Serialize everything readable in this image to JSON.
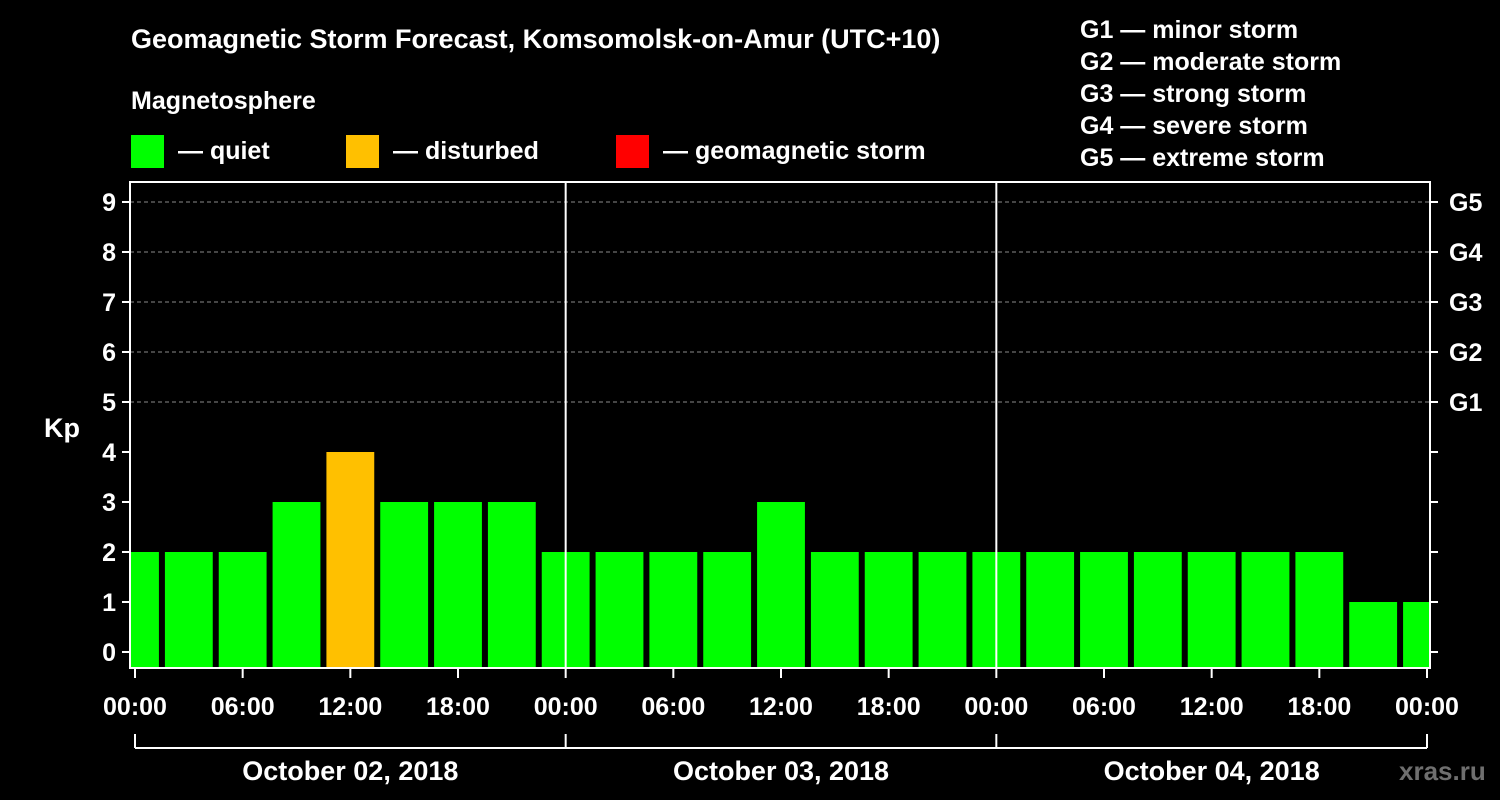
{
  "title": "Geomagnetic Storm Forecast, Komsomolsk-on-Amur (UTC+10)",
  "legend": {
    "heading": "Magnetosphere",
    "items": [
      {
        "label": "— quiet",
        "color": "#00ff00"
      },
      {
        "label": "— disturbed",
        "color": "#ffc000"
      },
      {
        "label": "— geomagnetic storm",
        "color": "#ff0000"
      }
    ]
  },
  "storm_scale": [
    "G1 — minor storm",
    "G2 — moderate storm",
    "G3 — strong storm",
    "G4 — severe storm",
    "G5 — extreme storm"
  ],
  "watermark": "xras.ru",
  "chart_data": {
    "type": "bar",
    "ylabel": "Kp",
    "ylim": [
      -0.3,
      9.4
    ],
    "yticks": [
      0,
      1,
      2,
      3,
      4,
      5,
      6,
      7,
      8,
      9
    ],
    "right_ticks": [
      {
        "value": 5,
        "label": "G1"
      },
      {
        "value": 6,
        "label": "G2"
      },
      {
        "value": 7,
        "label": "G3"
      },
      {
        "value": 8,
        "label": "G4"
      },
      {
        "value": 9,
        "label": "G5"
      }
    ],
    "x_hours_range": [
      0,
      72
    ],
    "xtick_labels": [
      "00:00",
      "06:00",
      "12:00",
      "18:00",
      "00:00",
      "06:00",
      "12:00",
      "18:00",
      "00:00",
      "06:00",
      "12:00",
      "18:00",
      "00:00"
    ],
    "days": [
      "October 02, 2018",
      "October 03, 2018",
      "October 04, 2018"
    ],
    "bar_width_hours": 3,
    "bars": [
      {
        "start_hour": -1.5,
        "kp": 2,
        "status": "quiet"
      },
      {
        "start_hour": 1.5,
        "kp": 2,
        "status": "quiet"
      },
      {
        "start_hour": 4.5,
        "kp": 2,
        "status": "quiet"
      },
      {
        "start_hour": 7.5,
        "kp": 3,
        "status": "quiet"
      },
      {
        "start_hour": 10.5,
        "kp": 4,
        "status": "disturbed"
      },
      {
        "start_hour": 13.5,
        "kp": 3,
        "status": "quiet"
      },
      {
        "start_hour": 16.5,
        "kp": 3,
        "status": "quiet"
      },
      {
        "start_hour": 19.5,
        "kp": 3,
        "status": "quiet"
      },
      {
        "start_hour": 22.5,
        "kp": 2,
        "status": "quiet"
      },
      {
        "start_hour": 25.5,
        "kp": 2,
        "status": "quiet"
      },
      {
        "start_hour": 28.5,
        "kp": 2,
        "status": "quiet"
      },
      {
        "start_hour": 31.5,
        "kp": 2,
        "status": "quiet"
      },
      {
        "start_hour": 34.5,
        "kp": 3,
        "status": "quiet"
      },
      {
        "start_hour": 37.5,
        "kp": 2,
        "status": "quiet"
      },
      {
        "start_hour": 40.5,
        "kp": 2,
        "status": "quiet"
      },
      {
        "start_hour": 43.5,
        "kp": 2,
        "status": "quiet"
      },
      {
        "start_hour": 46.5,
        "kp": 2,
        "status": "quiet"
      },
      {
        "start_hour": 49.5,
        "kp": 2,
        "status": "quiet"
      },
      {
        "start_hour": 52.5,
        "kp": 2,
        "status": "quiet"
      },
      {
        "start_hour": 55.5,
        "kp": 2,
        "status": "quiet"
      },
      {
        "start_hour": 58.5,
        "kp": 2,
        "status": "quiet"
      },
      {
        "start_hour": 61.5,
        "kp": 2,
        "status": "quiet"
      },
      {
        "start_hour": 64.5,
        "kp": 2,
        "status": "quiet"
      },
      {
        "start_hour": 67.5,
        "kp": 1,
        "status": "quiet"
      },
      {
        "start_hour": 70.5,
        "kp": 1,
        "status": "quiet"
      }
    ]
  }
}
